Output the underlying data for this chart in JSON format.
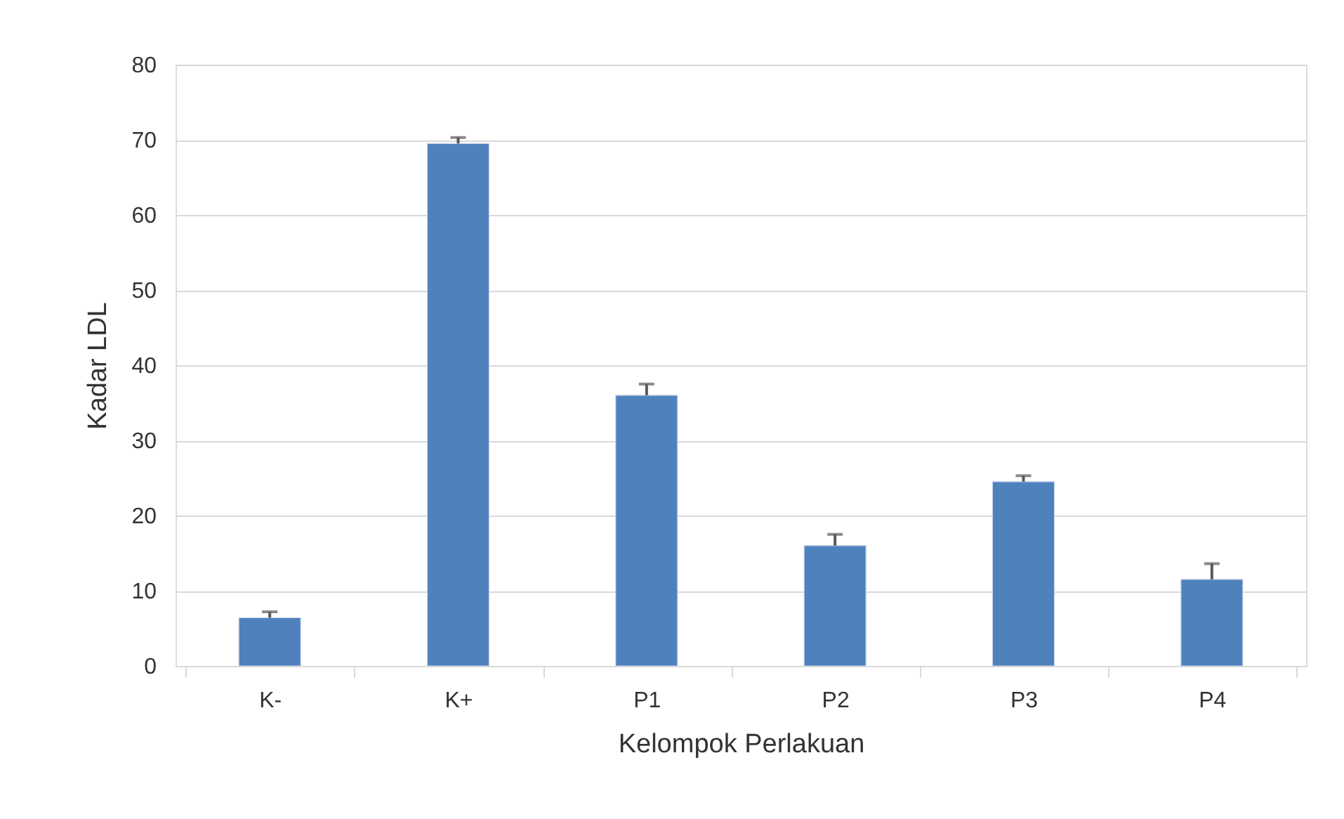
{
  "chart_data": {
    "type": "bar",
    "xlabel": "Kelompok Perlakuan",
    "ylabel": "Kadar LDL",
    "categories": [
      "K-",
      "K+",
      "P1",
      "P2",
      "P3",
      "P4"
    ],
    "series": [
      {
        "color": "#4f81bd",
        "values": [
          6.4,
          69.5,
          36.0,
          16.0,
          24.5,
          11.5
        ],
        "errors": [
          [
            6.4,
            7.2
          ],
          [
            69.5,
            70.3
          ],
          [
            36.0,
            37.5
          ],
          [
            16.0,
            17.5
          ],
          [
            24.5,
            25.3
          ],
          [
            11.5,
            13.6
          ]
        ]
      }
    ],
    "ylim": [
      0,
      80
    ],
    "yticks": [
      0,
      10,
      20,
      30,
      40,
      50,
      60,
      70,
      80
    ],
    "grid": "y"
  }
}
